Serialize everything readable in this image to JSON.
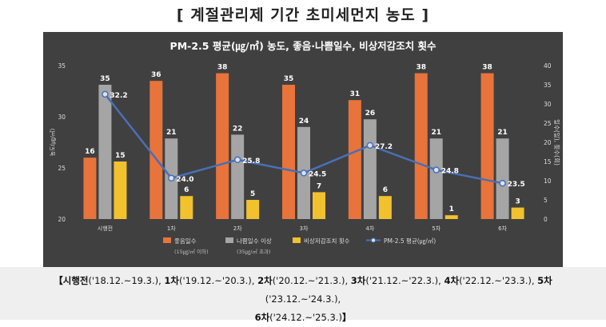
{
  "heading": "[ 계절관리제 기간 초미세먼지 농도 ]",
  "chart_data": {
    "type": "bar",
    "title": "PM-2.5 평균(㎍/㎥) 농도, 좋음·나쁨일수, 비상저감조치 횟수",
    "categories": [
      "시행전",
      "1차",
      "2차",
      "3차",
      "4차",
      "5차",
      "6차"
    ],
    "ylabel_left": "농도(㎍/㎥)",
    "ylabel_right": "일수(일), 횟수(회)",
    "ylim_left": [
      20,
      35
    ],
    "yticks_left": [
      20,
      25,
      30,
      35
    ],
    "ylim_right": [
      0,
      40
    ],
    "yticks_right": [
      0,
      5,
      10,
      15,
      20,
      25,
      30,
      35,
      40
    ],
    "grid": false,
    "legend_position": "bottom",
    "series": [
      {
        "name": "좋음일수",
        "sub": "(15㎍/㎥ 이하)",
        "type": "bar",
        "axis": "right",
        "color": "#e8743b",
        "values": [
          16,
          36,
          38,
          35,
          31,
          38,
          38
        ]
      },
      {
        "name": "나쁨일수 이상",
        "sub": "(35㎍/㎥ 초과)",
        "type": "bar",
        "axis": "right",
        "color": "#a5a5a5",
        "values": [
          35,
          21,
          22,
          24,
          26,
          21,
          21
        ]
      },
      {
        "name": "비상저감조치 횟수",
        "sub": "",
        "type": "bar",
        "axis": "right",
        "color": "#f2c12e",
        "values": [
          15,
          6,
          5,
          7,
          6,
          1,
          3
        ]
      },
      {
        "name": "PM-2.5 평균(㎍/㎥)",
        "sub": "",
        "type": "line",
        "axis": "left",
        "color": "#4a6fb5",
        "values": [
          32.2,
          24.0,
          25.8,
          24.5,
          27.2,
          24.8,
          23.5
        ],
        "labels": [
          "32.2",
          "24.0",
          "25.8",
          "24.5",
          "27.2",
          "24.8",
          "23.5"
        ]
      }
    ]
  },
  "footnote": {
    "line1": [
      {
        "b": "【시행전",
        "t": "('18.12.~19.3.), "
      },
      {
        "b": "1차",
        "t": "('19.12.~'20.3.), "
      },
      {
        "b": "2차",
        "t": "('20.12.~'21.3.), "
      },
      {
        "b": "3차",
        "t": "('21.12.~'22.3.), "
      },
      {
        "b": "4차",
        "t": "('22.12.~'23.3.), "
      },
      {
        "b": "5차",
        "t": "('23.12.~'24.3.),"
      }
    ],
    "line2": [
      {
        "b": "6차",
        "t": "('24.12.~'25.3.)"
      },
      {
        "b": "】",
        "t": ""
      }
    ]
  }
}
